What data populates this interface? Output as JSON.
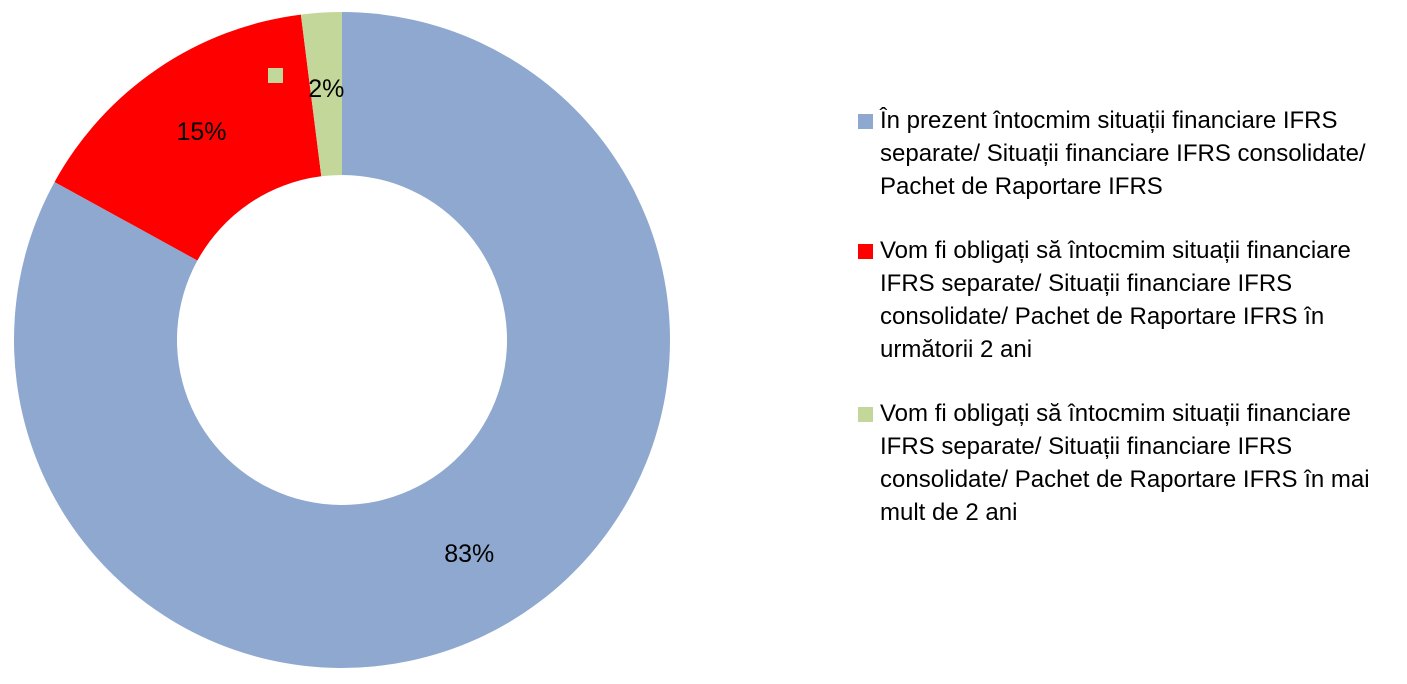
{
  "chart_data": {
    "type": "pie",
    "categories": [
      "În prezent întocmim situații financiare IFRS separate/ Situații financiare IFRS consolidate/ Pachet de Raportare IFRS",
      "Vom fi obligați să întocmim situații financiare IFRS separate/ Situații financiare IFRS consolidate/ Pachet de Raportare IFRS în următorii 2 ani",
      "Vom fi obligați să întocmim situații financiare IFRS separate/ Situații financiare IFRS consolidate/ Pachet de Raportare IFRS în mai mult de 2 ani"
    ],
    "values": [
      83,
      15,
      2
    ],
    "value_labels": [
      "83%",
      "15%",
      "2%"
    ],
    "colors": [
      "#8ea8cf",
      "#ff0000",
      "#c4d79b"
    ],
    "donut": true,
    "legend": "right"
  }
}
